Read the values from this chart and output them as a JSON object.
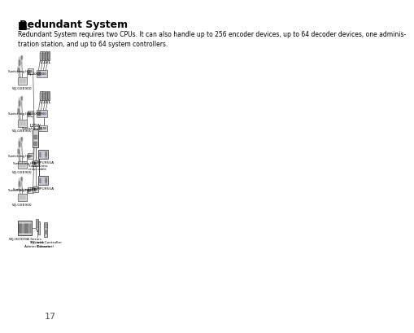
{
  "title": "Redundant System",
  "title_marker": "■",
  "body_text": "Redundant System requires two CPUs. It can also handle up to 256 encoder devices, up to 64 decoder devices, one adminis-\ntration station, and up to 64 system controllers.",
  "page_number": "17",
  "bg_color": "#ffffff",
  "title_fontsize": 9,
  "body_fontsize": 5.5,
  "page_num_fontsize": 8
}
